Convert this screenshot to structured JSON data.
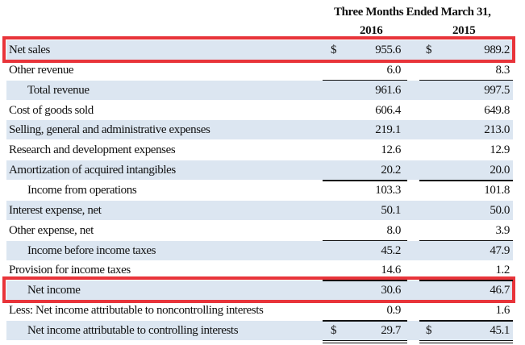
{
  "header": {
    "period": "Three Months Ended March 31,",
    "year1": "2016",
    "year2": "2015"
  },
  "currency_symbol": "$",
  "highlight_color": "#e8343a",
  "rows": [
    {
      "label": "Net sales",
      "v2016": "955.6",
      "v2015": "989.2",
      "dollar": true,
      "indent": false,
      "highlight": true
    },
    {
      "label": "Other revenue",
      "v2016": "6.0",
      "v2015": "8.3"
    },
    {
      "label": "Total revenue",
      "v2016": "961.6",
      "v2015": "997.5",
      "indent": true
    },
    {
      "label": "Cost of goods sold",
      "v2016": "606.4",
      "v2015": "649.8"
    },
    {
      "label": "Selling, general and administrative expenses",
      "v2016": "219.1",
      "v2015": "213.0"
    },
    {
      "label": "Research and development expenses",
      "v2016": "12.6",
      "v2015": "12.9"
    },
    {
      "label": "Amortization of acquired intangibles",
      "v2016": "20.2",
      "v2015": "20.0"
    },
    {
      "label": "Income from operations",
      "v2016": "103.3",
      "v2015": "101.8",
      "indent": true
    },
    {
      "label": "Interest expense, net",
      "v2016": "50.1",
      "v2015": "50.0"
    },
    {
      "label": "Other expense, net",
      "v2016": "8.0",
      "v2015": "3.9"
    },
    {
      "label": "Income before income taxes",
      "v2016": "45.2",
      "v2015": "47.9",
      "indent": true
    },
    {
      "label": "Provision for income taxes",
      "v2016": "14.6",
      "v2015": "1.2"
    },
    {
      "label": "Net income",
      "v2016": "30.6",
      "v2015": "46.7",
      "indent": true,
      "highlight": true
    },
    {
      "label": "Less: Net income attributable to noncontrolling interests",
      "v2016": "0.9",
      "v2015": "1.6"
    },
    {
      "label": "Net income attributable to controlling interests",
      "v2016": "29.7",
      "v2015": "45.1",
      "dollar": true,
      "indent": true
    }
  ]
}
